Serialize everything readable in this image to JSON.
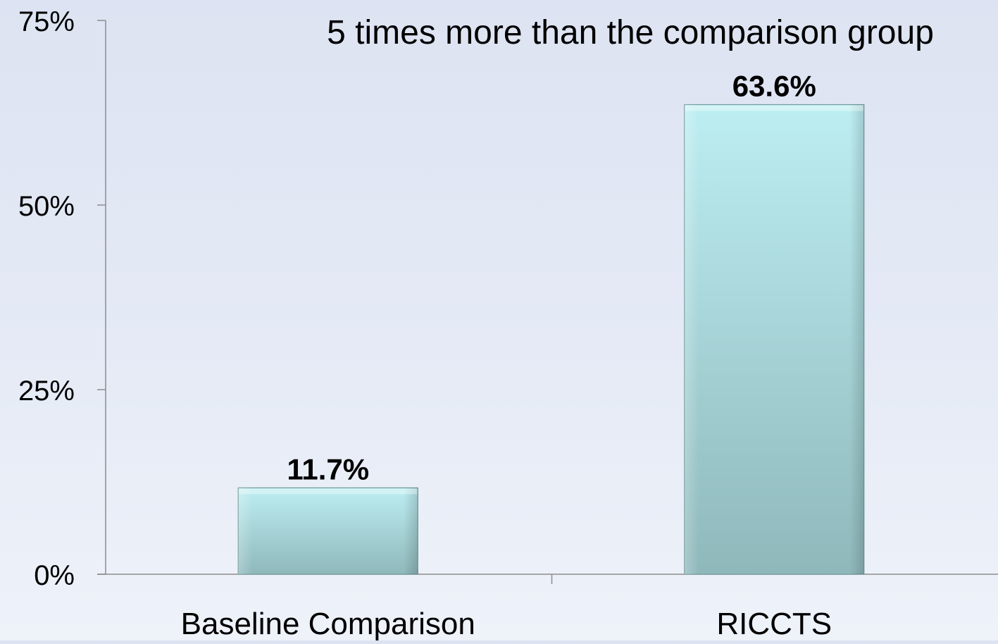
{
  "chart_data": {
    "type": "bar",
    "title": "5 times more than the comparison group",
    "categories": [
      "Baseline Comparison",
      "RICCTS"
    ],
    "values": [
      11.7,
      63.6
    ],
    "data_labels": [
      "11.7%",
      "63.6%"
    ],
    "ylim": [
      0,
      75
    ],
    "yticks": [
      0,
      25,
      50,
      75
    ],
    "ytick_labels": [
      "0%",
      "25%",
      "50%",
      "75%"
    ],
    "xlabel": "",
    "ylabel": "",
    "grid": false,
    "legend": "none",
    "colors": {
      "bar_top": "#bdeef2",
      "bar_bottom": "#8fb8bb",
      "bar_edge": "#6f9a9d",
      "axis": "#8c8c8c",
      "text": "#000000"
    }
  }
}
